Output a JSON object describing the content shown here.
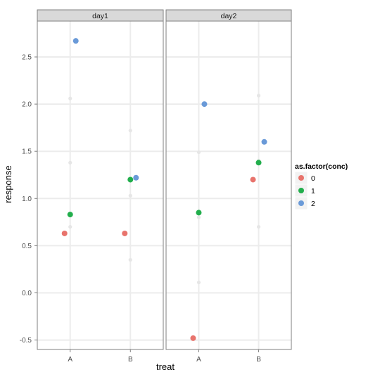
{
  "chart_data": {
    "type": "scatter",
    "xlabel": "treat",
    "ylabel": "response",
    "facets": [
      "day1",
      "day2"
    ],
    "categories": [
      "A",
      "B"
    ],
    "ylim": [
      -0.6,
      2.88
    ],
    "yticks": [
      -0.5,
      0.0,
      0.5,
      1.0,
      1.5,
      2.0,
      2.5
    ],
    "ytick_labels": [
      "-0.5",
      "0.0",
      "0.5",
      "1.0",
      "1.5",
      "2.0",
      "2.5"
    ],
    "grid": true,
    "legend_position": "right",
    "legend": {
      "title": "as.factor(conc)",
      "entries": [
        "0",
        "1",
        "2"
      ]
    },
    "series": [
      {
        "name": "0",
        "color": "#E8736C",
        "points": [
          {
            "facet": "day1",
            "x": "A",
            "y": 0.63
          },
          {
            "facet": "day1",
            "x": "B",
            "y": 0.63
          },
          {
            "facet": "day2",
            "x": "A",
            "y": -0.48
          },
          {
            "facet": "day2",
            "x": "B",
            "y": 1.2
          }
        ]
      },
      {
        "name": "1",
        "color": "#22AE4C",
        "points": [
          {
            "facet": "day1",
            "x": "A",
            "y": 0.83
          },
          {
            "facet": "day1",
            "x": "B",
            "y": 1.2
          },
          {
            "facet": "day2",
            "x": "A",
            "y": 0.85
          },
          {
            "facet": "day2",
            "x": "B",
            "y": 1.38
          }
        ]
      },
      {
        "name": "2",
        "color": "#6A9AD8",
        "points": [
          {
            "facet": "day1",
            "x": "A",
            "y": 2.67
          },
          {
            "facet": "day1",
            "x": "B",
            "y": 1.22
          },
          {
            "facet": "day2",
            "x": "A",
            "y": 2.0
          },
          {
            "facet": "day2",
            "x": "B",
            "y": 1.6
          }
        ]
      }
    ],
    "background_points": [
      {
        "facet": "day1",
        "x": "A",
        "y": 2.06
      },
      {
        "facet": "day1",
        "x": "A",
        "y": 1.38
      },
      {
        "facet": "day1",
        "x": "A",
        "y": 0.7
      },
      {
        "facet": "day1",
        "x": "B",
        "y": 1.72
      },
      {
        "facet": "day1",
        "x": "B",
        "y": 1.03
      },
      {
        "facet": "day1",
        "x": "B",
        "y": 0.35
      },
      {
        "facet": "day2",
        "x": "A",
        "y": 1.49
      },
      {
        "facet": "day2",
        "x": "A",
        "y": 0.8
      },
      {
        "facet": "day2",
        "x": "A",
        "y": 0.11
      },
      {
        "facet": "day2",
        "x": "B",
        "y": 2.09
      },
      {
        "facet": "day2",
        "x": "B",
        "y": 1.4
      },
      {
        "facet": "day2",
        "x": "B",
        "y": 0.7
      }
    ],
    "colors": {
      "panel_background": "#ffffff",
      "panel_border": "#7f7f7f",
      "strip_background": "#d9d9d9",
      "grid": "#ececec"
    }
  }
}
